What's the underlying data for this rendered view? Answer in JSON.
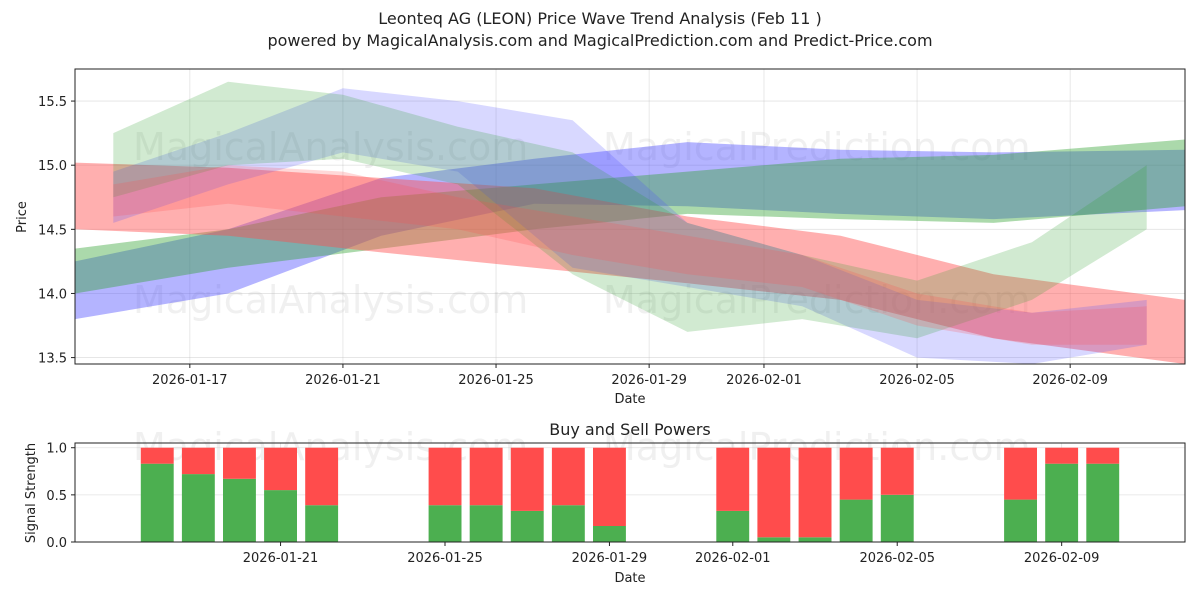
{
  "title": "Leonteq AG (LEON) Price Wave Trend Analysis (Feb 11 )",
  "subtitle": "powered by MagicalAnalysis.com and MagicalPrediction.com and Predict-Price.com",
  "watermarks": [
    "MagicalAnalysis.com",
    "MagicalPrediction.com",
    "MagicalAnalysis.com",
    "MagicalPrediction.com",
    "MagicalAnalysis.com",
    "MagicalPrediction.com"
  ],
  "colors": {
    "green": "#2ca02c",
    "red": "#ff4d4d",
    "blue": "#4d4dff",
    "bar_green": "#4caf50",
    "bar_red": "#ff4c4c"
  },
  "chart_data": [
    {
      "type": "area",
      "title": "",
      "xlabel": "Date",
      "ylabel": "Price",
      "x_range": [
        "2026-01-14",
        "2026-02-12"
      ],
      "ylim": [
        13.45,
        15.75
      ],
      "x_ticks": [
        "2026-01-17",
        "2026-01-21",
        "2026-01-25",
        "2026-01-29",
        "2026-02-01",
        "2026-02-05",
        "2026-02-09"
      ],
      "y_ticks": [
        13.5,
        14.0,
        14.5,
        15.0,
        15.5
      ],
      "grid": true,
      "series": [
        {
          "name": "blue-wave-main",
          "color": "blue",
          "opacity": 0.42,
          "dates": [
            "2026-01-14",
            "2026-01-18",
            "2026-01-22",
            "2026-01-26",
            "2026-01-30",
            "2026-02-03",
            "2026-02-07",
            "2026-02-12"
          ],
          "upper": [
            14.25,
            14.5,
            14.9,
            15.05,
            15.18,
            15.12,
            15.1,
            15.12
          ],
          "lower": [
            13.8,
            14.0,
            14.45,
            14.7,
            14.68,
            14.62,
            14.58,
            14.65
          ]
        },
        {
          "name": "green-wave-main",
          "color": "green",
          "opacity": 0.4,
          "dates": [
            "2026-01-14",
            "2026-01-18",
            "2026-01-22",
            "2026-01-26",
            "2026-01-30",
            "2026-02-03",
            "2026-02-07",
            "2026-02-12"
          ],
          "upper": [
            14.35,
            14.5,
            14.75,
            14.85,
            14.95,
            15.05,
            15.08,
            15.2
          ],
          "lower": [
            14.0,
            14.2,
            14.35,
            14.5,
            14.62,
            14.58,
            14.55,
            14.68
          ]
        },
        {
          "name": "red-wave-main",
          "color": "red",
          "opacity": 0.45,
          "dates": [
            "2026-01-14",
            "2026-01-18",
            "2026-01-22",
            "2026-01-26",
            "2026-01-30",
            "2026-02-03",
            "2026-02-07",
            "2026-02-12"
          ],
          "upper": [
            15.02,
            14.98,
            14.9,
            14.82,
            14.6,
            14.45,
            14.15,
            13.95
          ],
          "lower": [
            14.5,
            14.45,
            14.32,
            14.2,
            14.08,
            13.95,
            13.65,
            13.45
          ]
        },
        {
          "name": "blue-wave-short",
          "color": "blue",
          "opacity": 0.22,
          "dates": [
            "2026-01-15",
            "2026-01-18",
            "2026-01-21",
            "2026-01-24",
            "2026-01-27",
            "2026-01-30",
            "2026-02-02",
            "2026-02-05",
            "2026-02-08",
            "2026-02-11"
          ],
          "upper": [
            14.95,
            15.25,
            15.6,
            15.5,
            15.35,
            14.55,
            14.3,
            13.95,
            13.85,
            13.95
          ],
          "lower": [
            14.55,
            14.85,
            15.1,
            14.95,
            14.2,
            14.05,
            13.9,
            13.5,
            13.45,
            13.6
          ]
        },
        {
          "name": "green-wave-short",
          "color": "green",
          "opacity": 0.22,
          "dates": [
            "2026-01-15",
            "2026-01-18",
            "2026-01-21",
            "2026-01-24",
            "2026-01-27",
            "2026-01-30",
            "2026-02-02",
            "2026-02-05",
            "2026-02-08",
            "2026-02-11"
          ],
          "upper": [
            15.25,
            15.65,
            15.55,
            15.3,
            15.1,
            14.55,
            14.3,
            14.1,
            14.4,
            15.0
          ],
          "lower": [
            14.75,
            15.0,
            15.05,
            14.85,
            14.15,
            13.7,
            13.8,
            13.65,
            13.95,
            14.5
          ]
        },
        {
          "name": "red-wave-short",
          "color": "red",
          "opacity": 0.22,
          "dates": [
            "2026-01-15",
            "2026-01-18",
            "2026-01-21",
            "2026-01-24",
            "2026-01-27",
            "2026-01-30",
            "2026-02-02",
            "2026-02-05",
            "2026-02-08",
            "2026-02-11"
          ],
          "upper": [
            14.85,
            15.0,
            14.95,
            14.75,
            14.6,
            14.45,
            14.3,
            14.0,
            13.85,
            13.9
          ],
          "lower": [
            14.6,
            14.7,
            14.6,
            14.5,
            14.3,
            14.15,
            14.05,
            13.75,
            13.6,
            13.6
          ]
        }
      ]
    },
    {
      "type": "bar",
      "title": "Buy and Sell Powers",
      "xlabel": "Date",
      "ylabel": "Signal Strength",
      "ylim": [
        0,
        1.05
      ],
      "x_range": [
        "2026-01-16",
        "2026-02-12"
      ],
      "x_ticks": [
        "2026-01-21",
        "2026-01-25",
        "2026-01-29",
        "2026-02-01",
        "2026-02-05",
        "2026-02-09"
      ],
      "y_ticks": [
        0.0,
        0.5,
        1.0
      ],
      "dates": [
        "2026-01-18",
        "2026-01-19",
        "2026-01-20",
        "2026-01-21",
        "2026-01-22",
        "2026-01-25",
        "2026-01-26",
        "2026-01-27",
        "2026-01-28",
        "2026-01-29",
        "2026-02-01",
        "2026-02-02",
        "2026-02-03",
        "2026-02-04",
        "2026-02-05",
        "2026-02-08",
        "2026-02-09",
        "2026-02-10"
      ],
      "series": [
        {
          "name": "Buy",
          "color": "bar_green",
          "values": [
            0.83,
            0.72,
            0.67,
            0.55,
            0.39,
            0.39,
            0.39,
            0.33,
            0.39,
            0.17,
            0.33,
            0.05,
            0.05,
            0.45,
            0.5,
            0.45,
            0.83,
            0.83
          ]
        },
        {
          "name": "Sell",
          "color": "bar_red",
          "values": [
            0.17,
            0.28,
            0.33,
            0.45,
            0.61,
            0.61,
            0.61,
            0.67,
            0.61,
            0.83,
            0.67,
            0.95,
            0.95,
            0.55,
            0.5,
            0.55,
            0.17,
            0.17
          ]
        }
      ]
    }
  ]
}
